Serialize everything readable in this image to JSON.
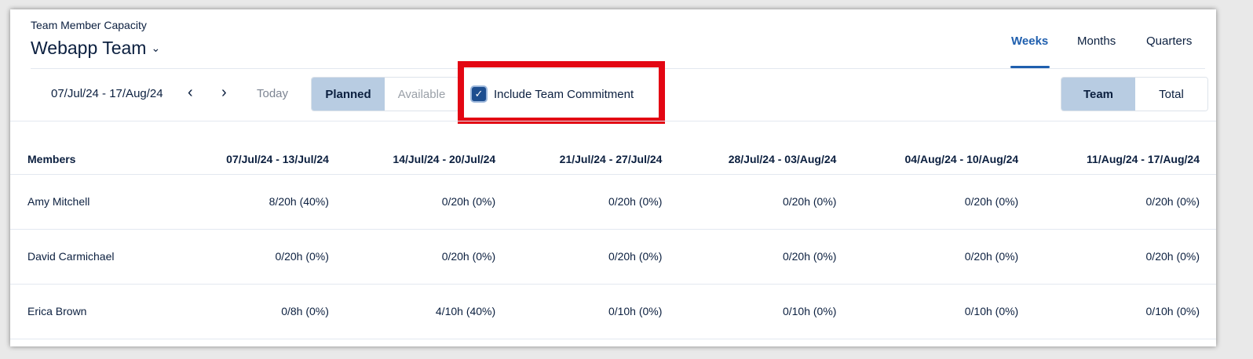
{
  "header": {
    "subtitle": "Team Member Capacity",
    "title": "Webapp Team"
  },
  "view_tabs": [
    {
      "label": "Weeks",
      "active": true
    },
    {
      "label": "Months",
      "active": false
    },
    {
      "label": "Quarters",
      "active": false
    }
  ],
  "toolbar": {
    "date_range": "07/Jul/24 - 17/Aug/24",
    "today_label": "Today",
    "mode": {
      "planned": "Planned",
      "available": "Available",
      "selected": "Planned"
    },
    "include_commitment": {
      "label": "Include Team Commitment",
      "checked": true
    },
    "scope": {
      "team": "Team",
      "total": "Total",
      "selected": "Team"
    }
  },
  "table": {
    "columns": [
      "Members",
      "07/Jul/24 - 13/Jul/24",
      "14/Jul/24 - 20/Jul/24",
      "21/Jul/24 - 27/Jul/24",
      "28/Jul/24 - 03/Aug/24",
      "04/Aug/24 - 10/Aug/24",
      "11/Aug/24 - 17/Aug/24"
    ],
    "rows": [
      [
        "Amy Mitchell",
        "8/20h (40%)",
        "0/20h (0%)",
        "0/20h (0%)",
        "0/20h (0%)",
        "0/20h (0%)",
        "0/20h (0%)"
      ],
      [
        "David Carmichael",
        "0/20h (0%)",
        "0/20h (0%)",
        "0/20h (0%)",
        "0/20h (0%)",
        "0/20h (0%)",
        "0/20h (0%)"
      ],
      [
        "Erica Brown",
        "0/8h (0%)",
        "4/10h (40%)",
        "0/10h (0%)",
        "0/10h (0%)",
        "0/10h (0%)",
        "0/10h (0%)"
      ]
    ]
  },
  "colors": {
    "accent": "#1f5fae",
    "highlight": "#e30613",
    "selected_segment": "#b8cce2"
  }
}
